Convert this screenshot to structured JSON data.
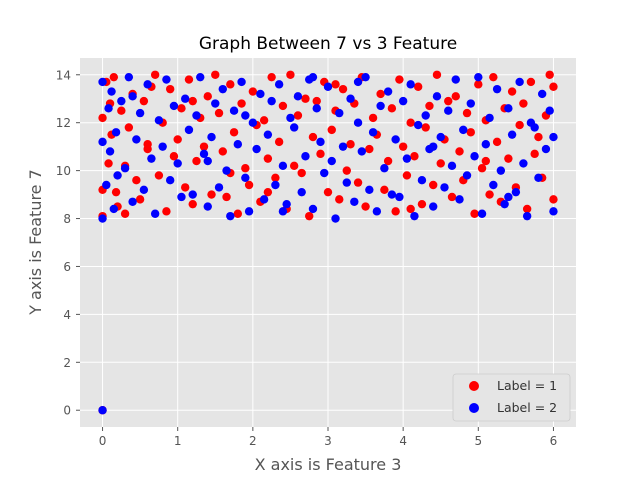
{
  "chart_data": {
    "type": "scatter",
    "title": "Graph Between 7 vs 3 Feature",
    "xlabel": "X axis is Feature 3",
    "ylabel": "Y axis is Feature 7",
    "xlim": [
      -0.3,
      6.3
    ],
    "ylim": [
      -0.7,
      14.7
    ],
    "xticks": [
      0,
      1,
      2,
      3,
      4,
      5,
      6
    ],
    "yticks": [
      0,
      2,
      4,
      6,
      8,
      10,
      12,
      14
    ],
    "grid": true,
    "legend_position": "bottom-right",
    "style": {
      "background": "#e5e5e5",
      "grid_color": "#ffffff"
    },
    "series": [
      {
        "name": "Label = 1",
        "color": "#ff0000",
        "points": [
          [
            0.0,
            0.0
          ],
          [
            0.0,
            12.2
          ],
          [
            0.0,
            9.2
          ],
          [
            0.0,
            8.1
          ],
          [
            0.05,
            13.7
          ],
          [
            0.08,
            10.3
          ],
          [
            0.1,
            12.8
          ],
          [
            0.12,
            11.5
          ],
          [
            0.15,
            13.9
          ],
          [
            0.18,
            9.1
          ],
          [
            0.2,
            8.5
          ],
          [
            0.25,
            12.5
          ],
          [
            0.3,
            10.2
          ],
          [
            0.35,
            11.8
          ],
          [
            0.4,
            13.2
          ],
          [
            0.45,
            9.6
          ],
          [
            0.5,
            8.8
          ],
          [
            0.55,
            12.9
          ],
          [
            0.6,
            10.9
          ],
          [
            0.65,
            13.5
          ],
          [
            0.7,
            14.0
          ],
          [
            0.75,
            9.8
          ],
          [
            0.8,
            12.0
          ],
          [
            0.85,
            8.3
          ],
          [
            0.9,
            13.4
          ],
          [
            0.95,
            10.6
          ],
          [
            1.0,
            11.3
          ],
          [
            1.05,
            12.6
          ],
          [
            1.1,
            9.3
          ],
          [
            1.15,
            13.8
          ],
          [
            1.2,
            8.6
          ],
          [
            1.25,
            10.4
          ],
          [
            1.3,
            12.2
          ],
          [
            1.35,
            11.0
          ],
          [
            1.4,
            13.1
          ],
          [
            1.45,
            9.0
          ],
          [
            1.5,
            14.0
          ],
          [
            1.55,
            12.4
          ],
          [
            1.6,
            10.8
          ],
          [
            1.65,
            8.9
          ],
          [
            1.7,
            13.6
          ],
          [
            1.75,
            11.6
          ],
          [
            1.8,
            8.2
          ],
          [
            1.85,
            12.8
          ],
          [
            1.9,
            10.1
          ],
          [
            1.95,
            9.4
          ],
          [
            2.0,
            13.3
          ],
          [
            2.05,
            11.9
          ],
          [
            2.1,
            8.7
          ],
          [
            2.15,
            12.1
          ],
          [
            2.2,
            10.5
          ],
          [
            2.25,
            13.9
          ],
          [
            2.3,
            9.7
          ],
          [
            2.35,
            11.2
          ],
          [
            2.4,
            12.7
          ],
          [
            2.45,
            8.4
          ],
          [
            2.5,
            14.0
          ],
          [
            2.55,
            10.2
          ],
          [
            2.6,
            12.3
          ],
          [
            2.65,
            9.9
          ],
          [
            2.7,
            13.0
          ],
          [
            2.75,
            8.1
          ],
          [
            2.8,
            11.4
          ],
          [
            2.85,
            12.9
          ],
          [
            2.9,
            10.7
          ],
          [
            2.95,
            13.7
          ],
          [
            3.0,
            9.1
          ],
          [
            3.05,
            11.7
          ],
          [
            3.1,
            12.5
          ],
          [
            3.15,
            8.8
          ],
          [
            3.2,
            13.4
          ],
          [
            3.25,
            10.0
          ],
          [
            3.3,
            11.1
          ],
          [
            3.35,
            12.8
          ],
          [
            3.4,
            9.5
          ],
          [
            3.45,
            13.9
          ],
          [
            3.5,
            8.5
          ],
          [
            3.55,
            10.9
          ],
          [
            3.6,
            12.2
          ],
          [
            3.65,
            11.5
          ],
          [
            3.7,
            13.2
          ],
          [
            3.75,
            9.2
          ],
          [
            3.8,
            10.4
          ],
          [
            3.85,
            12.6
          ],
          [
            3.9,
            8.3
          ],
          [
            3.95,
            13.8
          ],
          [
            4.0,
            11.0
          ],
          [
            4.05,
            9.8
          ],
          [
            4.1,
            12.0
          ],
          [
            4.15,
            10.6
          ],
          [
            4.2,
            13.5
          ],
          [
            4.25,
            8.6
          ],
          [
            4.3,
            11.8
          ],
          [
            4.35,
            12.7
          ],
          [
            4.4,
            9.4
          ],
          [
            4.45,
            14.0
          ],
          [
            4.5,
            10.3
          ],
          [
            4.55,
            11.3
          ],
          [
            4.6,
            12.9
          ],
          [
            4.65,
            8.9
          ],
          [
            4.7,
            13.1
          ],
          [
            4.75,
            10.8
          ],
          [
            4.8,
            9.6
          ],
          [
            4.85,
            12.4
          ],
          [
            4.9,
            11.6
          ],
          [
            4.95,
            8.2
          ],
          [
            5.0,
            13.6
          ],
          [
            5.05,
            10.1
          ],
          [
            5.1,
            12.1
          ],
          [
            5.15,
            9.0
          ],
          [
            5.2,
            13.9
          ],
          [
            5.25,
            11.2
          ],
          [
            5.3,
            8.7
          ],
          [
            5.35,
            12.6
          ],
          [
            5.4,
            10.5
          ],
          [
            5.45,
            13.3
          ],
          [
            5.5,
            9.3
          ],
          [
            5.55,
            11.9
          ],
          [
            5.6,
            12.8
          ],
          [
            5.65,
            8.4
          ],
          [
            5.7,
            13.7
          ],
          [
            5.75,
            10.7
          ],
          [
            5.8,
            11.4
          ],
          [
            5.85,
            9.7
          ],
          [
            5.9,
            12.3
          ],
          [
            5.95,
            14.0
          ],
          [
            6.0,
            8.8
          ],
          [
            6.0,
            13.5
          ],
          [
            0.3,
            8.2
          ],
          [
            1.2,
            12.9
          ],
          [
            2.2,
            9.1
          ],
          [
            3.1,
            13.6
          ],
          [
            4.1,
            8.4
          ],
          [
            5.1,
            10.4
          ],
          [
            0.6,
            11.1
          ],
          [
            1.7,
            9.9
          ]
        ]
      },
      {
        "name": "Label = 2",
        "color": "#0000ff",
        "points": [
          [
            0.0,
            0.0
          ],
          [
            0.0,
            13.7
          ],
          [
            0.0,
            11.2
          ],
          [
            0.0,
            8.0
          ],
          [
            0.05,
            9.4
          ],
          [
            0.08,
            12.6
          ],
          [
            0.1,
            10.8
          ],
          [
            0.12,
            13.3
          ],
          [
            0.15,
            8.4
          ],
          [
            0.18,
            11.6
          ],
          [
            0.2,
            9.8
          ],
          [
            0.25,
            12.9
          ],
          [
            0.3,
            10.1
          ],
          [
            0.35,
            13.9
          ],
          [
            0.4,
            8.7
          ],
          [
            0.45,
            11.3
          ],
          [
            0.5,
            12.4
          ],
          [
            0.55,
            9.2
          ],
          [
            0.6,
            13.6
          ],
          [
            0.65,
            10.5
          ],
          [
            0.7,
            8.2
          ],
          [
            0.75,
            12.1
          ],
          [
            0.8,
            11.0
          ],
          [
            0.85,
            13.8
          ],
          [
            0.9,
            9.6
          ],
          [
            0.95,
            12.7
          ],
          [
            1.0,
            10.3
          ],
          [
            1.05,
            8.9
          ],
          [
            1.1,
            13.0
          ],
          [
            1.15,
            11.7
          ],
          [
            1.2,
            9.0
          ],
          [
            1.25,
            12.3
          ],
          [
            1.3,
            13.9
          ],
          [
            1.35,
            10.7
          ],
          [
            1.4,
            8.5
          ],
          [
            1.45,
            11.4
          ],
          [
            1.5,
            12.8
          ],
          [
            1.55,
            9.3
          ],
          [
            1.6,
            13.4
          ],
          [
            1.65,
            10.0
          ],
          [
            1.7,
            8.1
          ],
          [
            1.75,
            12.5
          ],
          [
            1.8,
            11.1
          ],
          [
            1.85,
            13.7
          ],
          [
            1.9,
            9.7
          ],
          [
            1.95,
            8.3
          ],
          [
            2.0,
            12.0
          ],
          [
            2.05,
            10.9
          ],
          [
            2.1,
            13.2
          ],
          [
            2.15,
            8.8
          ],
          [
            2.2,
            11.5
          ],
          [
            2.25,
            12.9
          ],
          [
            2.3,
            9.4
          ],
          [
            2.35,
            13.6
          ],
          [
            2.4,
            10.2
          ],
          [
            2.45,
            8.6
          ],
          [
            2.5,
            12.2
          ],
          [
            2.55,
            11.8
          ],
          [
            2.6,
            13.1
          ],
          [
            2.65,
            9.1
          ],
          [
            2.7,
            10.6
          ],
          [
            2.75,
            13.8
          ],
          [
            2.8,
            8.4
          ],
          [
            2.85,
            12.6
          ],
          [
            2.9,
            11.2
          ],
          [
            2.95,
            9.9
          ],
          [
            3.0,
            13.5
          ],
          [
            3.05,
            10.4
          ],
          [
            3.1,
            8.0
          ],
          [
            3.15,
            12.4
          ],
          [
            3.2,
            11.0
          ],
          [
            3.25,
            9.5
          ],
          [
            3.3,
            13.0
          ],
          [
            3.35,
            8.7
          ],
          [
            3.4,
            12.0
          ],
          [
            3.45,
            10.8
          ],
          [
            3.5,
            13.9
          ],
          [
            3.55,
            9.2
          ],
          [
            3.6,
            11.6
          ],
          [
            3.65,
            8.3
          ],
          [
            3.7,
            12.7
          ],
          [
            3.75,
            10.1
          ],
          [
            3.8,
            13.3
          ],
          [
            3.85,
            9.0
          ],
          [
            3.9,
            11.3
          ],
          [
            3.95,
            8.9
          ],
          [
            4.0,
            12.9
          ],
          [
            4.05,
            10.5
          ],
          [
            4.1,
            13.6
          ],
          [
            4.15,
            8.1
          ],
          [
            4.2,
            11.9
          ],
          [
            4.25,
            9.6
          ],
          [
            4.3,
            12.3
          ],
          [
            4.35,
            10.9
          ],
          [
            4.4,
            8.5
          ],
          [
            4.45,
            13.1
          ],
          [
            4.5,
            11.4
          ],
          [
            4.55,
            9.3
          ],
          [
            4.6,
            12.5
          ],
          [
            4.65,
            10.2
          ],
          [
            4.7,
            13.8
          ],
          [
            4.75,
            8.8
          ],
          [
            4.8,
            11.7
          ],
          [
            4.85,
            9.8
          ],
          [
            4.9,
            12.8
          ],
          [
            4.95,
            10.6
          ],
          [
            5.0,
            13.9
          ],
          [
            5.05,
            8.2
          ],
          [
            5.1,
            11.1
          ],
          [
            5.15,
            12.2
          ],
          [
            5.2,
            9.4
          ],
          [
            5.25,
            13.4
          ],
          [
            5.3,
            10.0
          ],
          [
            5.35,
            8.6
          ],
          [
            5.4,
            12.6
          ],
          [
            5.45,
            11.5
          ],
          [
            5.5,
            9.1
          ],
          [
            5.55,
            13.7
          ],
          [
            5.6,
            10.3
          ],
          [
            5.65,
            8.1
          ],
          [
            5.7,
            12.0
          ],
          [
            5.75,
            11.8
          ],
          [
            5.8,
            9.7
          ],
          [
            5.85,
            13.2
          ],
          [
            5.9,
            10.9
          ],
          [
            5.95,
            12.5
          ],
          [
            6.0,
            8.3
          ],
          [
            6.0,
            11.4
          ],
          [
            0.4,
            13.1
          ],
          [
            1.4,
            10.4
          ],
          [
            2.4,
            8.3
          ],
          [
            3.4,
            13.7
          ],
          [
            4.4,
            11.0
          ],
          [
            5.4,
            8.9
          ],
          [
            2.8,
            13.9
          ],
          [
            1.9,
            12.3
          ]
        ]
      }
    ]
  }
}
